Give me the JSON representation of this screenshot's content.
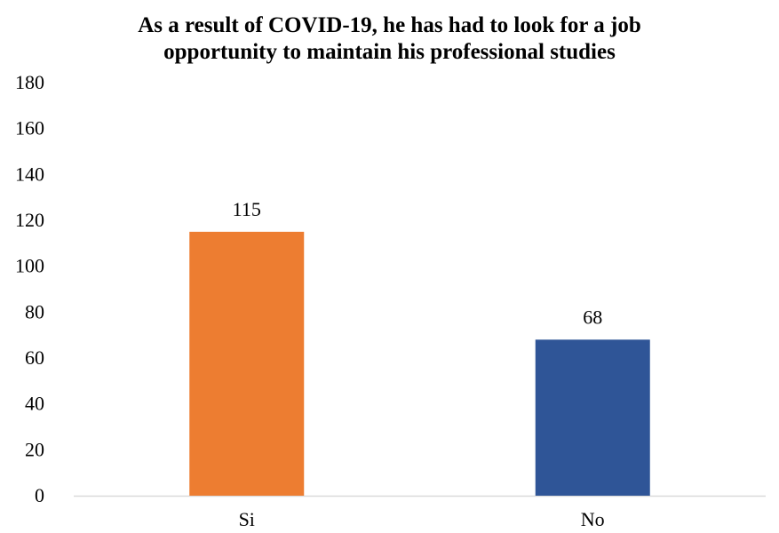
{
  "chart_data": {
    "type": "bar",
    "title_lines": [
      "As a result of COVID-19, he has had to look for a job",
      "opportunity to maintain his professional studies"
    ],
    "categories": [
      "Si",
      "No"
    ],
    "values": [
      115,
      68
    ],
    "data_labels": [
      "115",
      "68"
    ],
    "colors": [
      "#ED7D31",
      "#2F5597"
    ],
    "ylim": [
      0,
      180
    ],
    "yticks": [
      0,
      20,
      40,
      60,
      80,
      100,
      120,
      140,
      160,
      180
    ],
    "grid": false,
    "legend": "none"
  }
}
